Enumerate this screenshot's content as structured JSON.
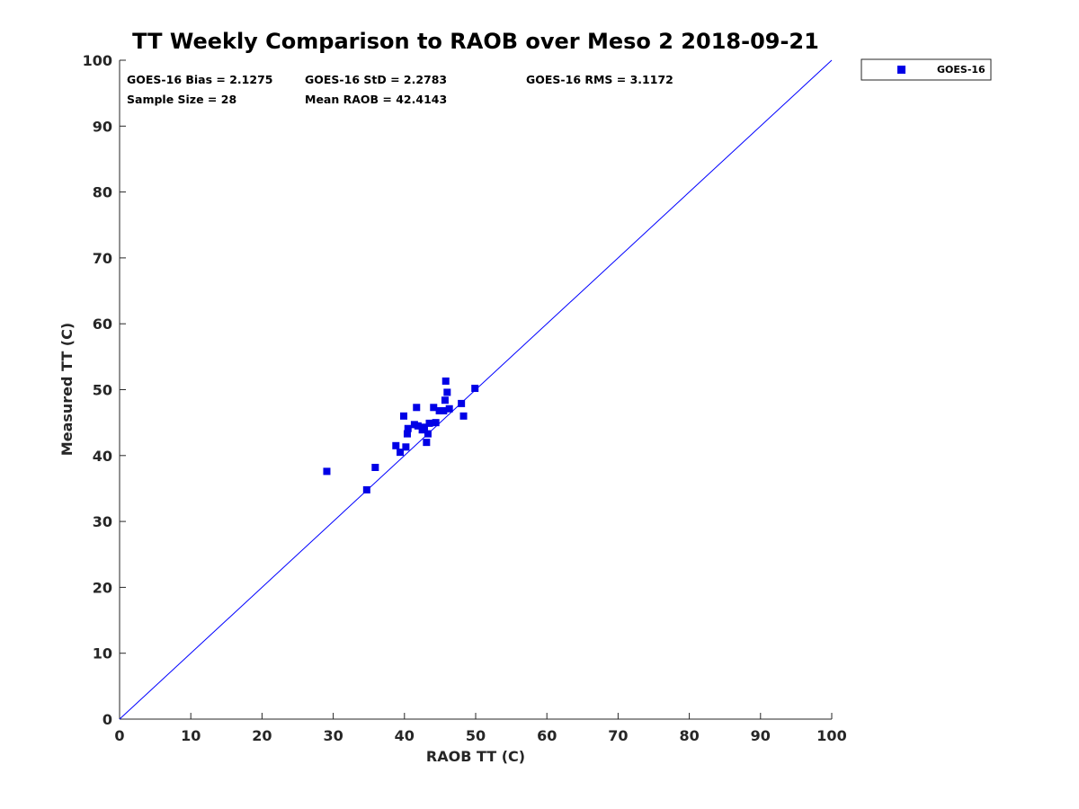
{
  "chart_data": {
    "type": "scatter",
    "title": "TT Weekly Comparison to RAOB over Meso 2 2018-09-21",
    "xlabel": "RAOB TT (C)",
    "ylabel": "Measured TT (C)",
    "xlim": [
      0,
      100
    ],
    "ylim": [
      0,
      100
    ],
    "xticks": [
      "0",
      "10",
      "20",
      "30",
      "40",
      "50",
      "60",
      "70",
      "80",
      "90",
      "100"
    ],
    "yticks": [
      "0",
      "10",
      "20",
      "30",
      "40",
      "50",
      "60",
      "70",
      "80",
      "90",
      "100"
    ],
    "grid": false,
    "legend_position": "outside-top-right",
    "reference_line": {
      "name": "1:1 line",
      "from": [
        0,
        0
      ],
      "to": [
        100,
        100
      ],
      "color": "#0000ff"
    },
    "stats": {
      "bias": "GOES-16 Bias = 2.1275",
      "std": "GOES-16 StD = 2.2783",
      "rms": "GOES-16 RMS = 3.1172",
      "sample_size": "Sample Size = 28",
      "mean_raob": "Mean RAOB = 42.4143"
    },
    "series": [
      {
        "name": "GOES-16",
        "color": "#0000e6",
        "marker": "square",
        "points": [
          [
            29.1,
            37.6
          ],
          [
            34.7,
            34.8
          ],
          [
            35.9,
            38.2
          ],
          [
            38.8,
            41.5
          ],
          [
            39.4,
            40.5
          ],
          [
            39.9,
            46.0
          ],
          [
            40.2,
            41.3
          ],
          [
            40.4,
            43.3
          ],
          [
            40.5,
            44.1
          ],
          [
            41.4,
            44.7
          ],
          [
            41.7,
            47.3
          ],
          [
            41.9,
            44.5
          ],
          [
            42.5,
            43.9
          ],
          [
            43.1,
            42.0
          ],
          [
            43.3,
            43.3
          ],
          [
            43.5,
            44.9
          ],
          [
            44.1,
            47.3
          ],
          [
            44.4,
            45.0
          ],
          [
            44.9,
            46.8
          ],
          [
            45.5,
            46.8
          ],
          [
            45.7,
            48.4
          ],
          [
            45.8,
            51.3
          ],
          [
            46.0,
            49.6
          ],
          [
            46.3,
            47.1
          ],
          [
            48.0,
            47.9
          ],
          [
            48.3,
            46.0
          ],
          [
            49.9,
            50.2
          ],
          [
            42.8,
            44.3
          ]
        ]
      }
    ]
  }
}
